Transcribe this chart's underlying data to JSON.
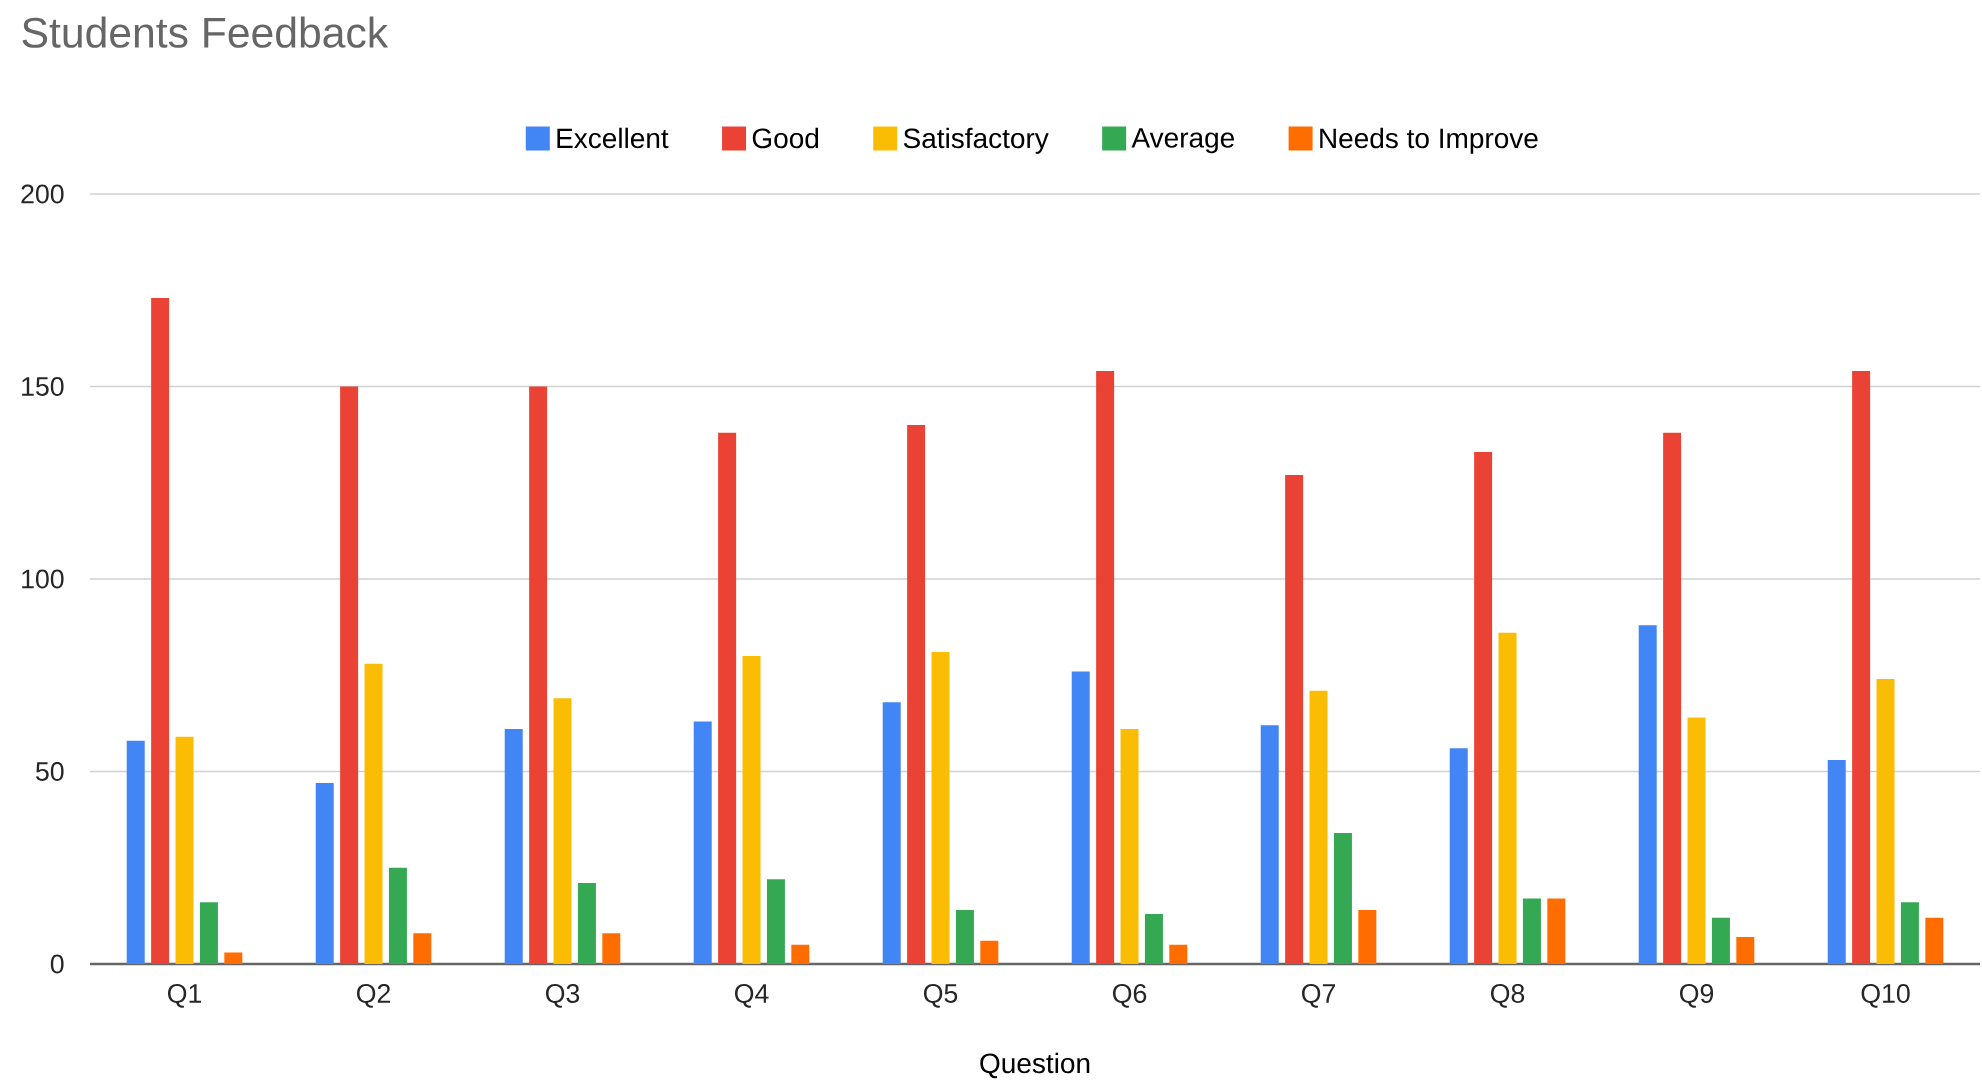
{
  "chart_data": {
    "type": "bar",
    "title": "Students Feedback",
    "xlabel": "Question",
    "categories": [
      "Q1",
      "Q2",
      "Q3",
      "Q4",
      "Q5",
      "Q6",
      "Q7",
      "Q8",
      "Q9",
      "Q10"
    ],
    "series": [
      {
        "name": "Excellent",
        "color": "#4285f4",
        "values": [
          58,
          47,
          61,
          63,
          68,
          76,
          62,
          56,
          88,
          53
        ]
      },
      {
        "name": "Good",
        "color": "#ea4335",
        "values": [
          173,
          150,
          150,
          138,
          140,
          154,
          127,
          133,
          138,
          154
        ]
      },
      {
        "name": "Satisfactory",
        "color": "#fbbc04",
        "values": [
          59,
          78,
          69,
          80,
          81,
          61,
          71,
          86,
          64,
          74
        ]
      },
      {
        "name": "Average",
        "color": "#34a853",
        "values": [
          16,
          25,
          21,
          22,
          14,
          13,
          34,
          17,
          12,
          16
        ]
      },
      {
        "name": "Needs to Improve",
        "color": "#ff6d01",
        "values": [
          3,
          8,
          8,
          5,
          6,
          5,
          14,
          17,
          7,
          12
        ]
      }
    ],
    "ylim": [
      0,
      200
    ],
    "yticks": [
      0,
      50,
      100,
      150,
      200
    ],
    "grid": "y",
    "legend": "top"
  }
}
